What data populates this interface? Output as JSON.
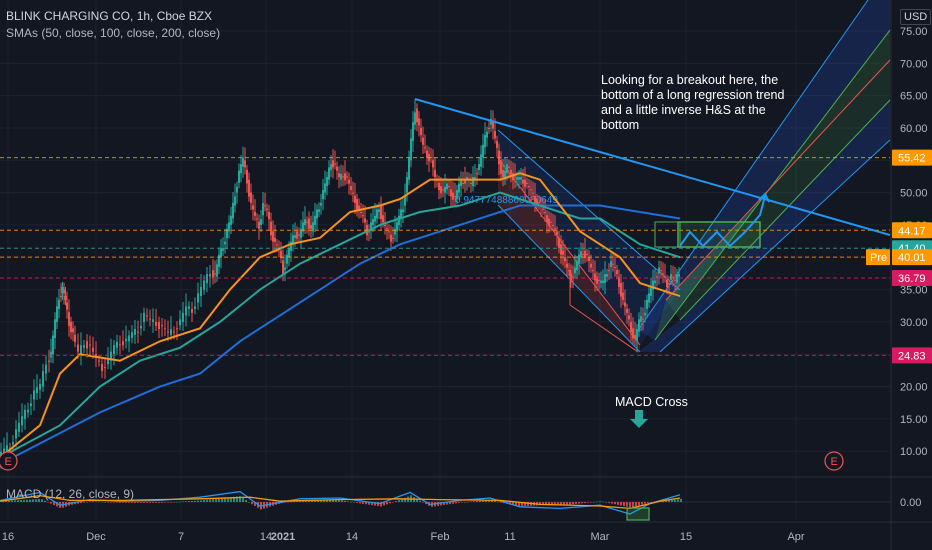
{
  "header": {
    "title": "BLINK CHARGING CO, 1h, Cboe BZX",
    "indicator": "SMAs (50, close, 100, close, 200, close)"
  },
  "currency_label": "USD",
  "annotation": "Looking for a breakout here, the bottom of a long regression trend and a little inverse H&S at the bottom",
  "macd_cross_label": "MACD Cross",
  "macd_label": "MACD (12, 26, close, 9)",
  "regression_value": "0.94777488860060649",
  "earnings_marker": "E",
  "colors": {
    "background": "#131722",
    "up_candle": "#26a69a",
    "down_candle": "#ef5350",
    "sma50": "#f7931a",
    "sma100": "#26a69a",
    "sma200": "#1e6fd9",
    "trendline": "#2196f3",
    "orange_dash": "#ff9800",
    "pink_dash": "#d81b60",
    "green_box": "#4caf50"
  },
  "chart_data": {
    "type": "candlestick",
    "symbol": "BLINK CHARGING CO",
    "interval": "1h",
    "y_axis": {
      "range": [
        5,
        78
      ],
      "ticks": [
        10,
        15,
        20,
        25,
        30,
        35,
        40,
        45,
        50,
        55,
        60,
        65,
        70,
        75
      ]
    },
    "x_axis": {
      "ticks": [
        "16",
        "Dec",
        "7",
        "14",
        "2021",
        "14",
        "Feb",
        "11",
        "Mar",
        "15",
        "Apr"
      ]
    },
    "price_labels": [
      {
        "value": 55.42,
        "text": "55.42",
        "color": "#ff9800"
      },
      {
        "value": 44.17,
        "text": "44.17",
        "color": "#ff9800"
      },
      {
        "value": 41.4,
        "text": "41.40",
        "color": "#26a69a"
      },
      {
        "value": 40.01,
        "text": "40.01",
        "color": "#ff9800",
        "tag": "Pre"
      },
      {
        "value": 36.79,
        "text": "36.79",
        "color": "#d81b60"
      },
      {
        "value": 24.83,
        "text": "24.83",
        "color": "#d81b60"
      }
    ],
    "price_path": [
      [
        0,
        9
      ],
      [
        6,
        10
      ],
      [
        12,
        11
      ],
      [
        18,
        13
      ],
      [
        24,
        15
      ],
      [
        30,
        17
      ],
      [
        36,
        19
      ],
      [
        42,
        20
      ],
      [
        48,
        24
      ],
      [
        52,
        25
      ],
      [
        56,
        30
      ],
      [
        60,
        34
      ],
      [
        63,
        35
      ],
      [
        66,
        33
      ],
      [
        70,
        30
      ],
      [
        74,
        28
      ],
      [
        80,
        25
      ],
      [
        86,
        27
      ],
      [
        92,
        26
      ],
      [
        98,
        24
      ],
      [
        104,
        23
      ],
      [
        110,
        24
      ],
      [
        116,
        26
      ],
      [
        122,
        27
      ],
      [
        128,
        27
      ],
      [
        134,
        28
      ],
      [
        140,
        29
      ],
      [
        146,
        31
      ],
      [
        152,
        30
      ],
      [
        158,
        30
      ],
      [
        164,
        29
      ],
      [
        170,
        28
      ],
      [
        176,
        29
      ],
      [
        182,
        30
      ],
      [
        188,
        32
      ],
      [
        194,
        32
      ],
      [
        200,
        34
      ],
      [
        206,
        36
      ],
      [
        212,
        38
      ],
      [
        216,
        37
      ],
      [
        220,
        40
      ],
      [
        224,
        42
      ],
      [
        228,
        44
      ],
      [
        232,
        46
      ],
      [
        236,
        50
      ],
      [
        240,
        53
      ],
      [
        244,
        55
      ],
      [
        248,
        52
      ],
      [
        252,
        48
      ],
      [
        256,
        46
      ],
      [
        260,
        45
      ],
      [
        264,
        48
      ],
      [
        268,
        47
      ],
      [
        272,
        44
      ],
      [
        276,
        42
      ],
      [
        280,
        41
      ],
      [
        284,
        38
      ],
      [
        288,
        40
      ],
      [
        292,
        42
      ],
      [
        296,
        44
      ],
      [
        300,
        43
      ],
      [
        304,
        45
      ],
      [
        308,
        46
      ],
      [
        312,
        44
      ],
      [
        316,
        46
      ],
      [
        320,
        48
      ],
      [
        324,
        50
      ],
      [
        328,
        52
      ],
      [
        332,
        55
      ],
      [
        336,
        54
      ],
      [
        340,
        52
      ],
      [
        344,
        53
      ],
      [
        348,
        52
      ],
      [
        352,
        50
      ],
      [
        356,
        49
      ],
      [
        360,
        47
      ],
      [
        364,
        46
      ],
      [
        368,
        44
      ],
      [
        372,
        45
      ],
      [
        376,
        46
      ],
      [
        380,
        48
      ],
      [
        384,
        45
      ],
      [
        388,
        44
      ],
      [
        392,
        43
      ],
      [
        396,
        44
      ],
      [
        400,
        46
      ],
      [
        404,
        48
      ],
      [
        408,
        52
      ],
      [
        412,
        58
      ],
      [
        416,
        63
      ],
      [
        420,
        60
      ],
      [
        424,
        57
      ],
      [
        428,
        56
      ],
      [
        432,
        55
      ],
      [
        436,
        52
      ],
      [
        440,
        51
      ],
      [
        444,
        50
      ],
      [
        448,
        51
      ],
      [
        452,
        50
      ],
      [
        456,
        49
      ],
      [
        460,
        51
      ],
      [
        464,
        52
      ],
      [
        468,
        52
      ],
      [
        472,
        51
      ],
      [
        476,
        53
      ],
      [
        480,
        54
      ],
      [
        484,
        57
      ],
      [
        488,
        60
      ],
      [
        492,
        61
      ],
      [
        496,
        58
      ],
      [
        500,
        55
      ],
      [
        504,
        52
      ],
      [
        508,
        54
      ],
      [
        512,
        53
      ],
      [
        516,
        52
      ],
      [
        520,
        52
      ],
      [
        524,
        52
      ],
      [
        528,
        51
      ],
      [
        532,
        50
      ],
      [
        536,
        49
      ],
      [
        540,
        48
      ],
      [
        544,
        47
      ],
      [
        548,
        46
      ],
      [
        552,
        45
      ],
      [
        556,
        44
      ],
      [
        560,
        42
      ],
      [
        564,
        40
      ],
      [
        568,
        38
      ],
      [
        572,
        37
      ],
      [
        576,
        38
      ],
      [
        580,
        40
      ],
      [
        584,
        41
      ],
      [
        588,
        40
      ],
      [
        592,
        38
      ],
      [
        596,
        37
      ],
      [
        600,
        36
      ],
      [
        604,
        36
      ],
      [
        608,
        38
      ],
      [
        612,
        39
      ],
      [
        616,
        38
      ],
      [
        620,
        36
      ],
      [
        624,
        33
      ],
      [
        628,
        31
      ],
      [
        632,
        29
      ],
      [
        636,
        27
      ],
      [
        640,
        30
      ],
      [
        644,
        31
      ],
      [
        648,
        33
      ],
      [
        652,
        35
      ],
      [
        656,
        37
      ],
      [
        660,
        38
      ],
      [
        664,
        37
      ],
      [
        668,
        36
      ],
      [
        672,
        37
      ],
      [
        676,
        36
      ],
      [
        680,
        38
      ]
    ],
    "sma50": [
      [
        0,
        9
      ],
      [
        40,
        14
      ],
      [
        60,
        22
      ],
      [
        80,
        25
      ],
      [
        120,
        24
      ],
      [
        160,
        27
      ],
      [
        200,
        29
      ],
      [
        230,
        35
      ],
      [
        260,
        40
      ],
      [
        290,
        42
      ],
      [
        320,
        43
      ],
      [
        350,
        47
      ],
      [
        380,
        48
      ],
      [
        400,
        49
      ],
      [
        430,
        52
      ],
      [
        470,
        52
      ],
      [
        500,
        52
      ],
      [
        520,
        53
      ],
      [
        540,
        52
      ],
      [
        560,
        48
      ],
      [
        580,
        44
      ],
      [
        600,
        42
      ],
      [
        620,
        40
      ],
      [
        640,
        36
      ],
      [
        660,
        35
      ],
      [
        680,
        34
      ]
    ],
    "sma100": [
      [
        0,
        9
      ],
      [
        60,
        14
      ],
      [
        100,
        20
      ],
      [
        140,
        24
      ],
      [
        180,
        26
      ],
      [
        220,
        30
      ],
      [
        260,
        35
      ],
      [
        300,
        39
      ],
      [
        340,
        42
      ],
      [
        380,
        45
      ],
      [
        420,
        47
      ],
      [
        460,
        48
      ],
      [
        500,
        50
      ],
      [
        540,
        48
      ],
      [
        580,
        46
      ],
      [
        600,
        46
      ],
      [
        620,
        44
      ],
      [
        640,
        42
      ],
      [
        660,
        41
      ],
      [
        680,
        40
      ]
    ],
    "sma200": [
      [
        0,
        8
      ],
      [
        100,
        16
      ],
      [
        160,
        20
      ],
      [
        200,
        22
      ],
      [
        240,
        27
      ],
      [
        280,
        31
      ],
      [
        320,
        35
      ],
      [
        360,
        39
      ],
      [
        400,
        42
      ],
      [
        440,
        44
      ],
      [
        480,
        46
      ],
      [
        520,
        48
      ],
      [
        560,
        48
      ],
      [
        600,
        48
      ],
      [
        640,
        47
      ],
      [
        680,
        46
      ]
    ],
    "macd": [
      [
        0,
        0.2
      ],
      [
        40,
        1.2
      ],
      [
        60,
        -0.4
      ],
      [
        90,
        0.3
      ],
      [
        120,
        0.1
      ],
      [
        160,
        0.2
      ],
      [
        200,
        0.6
      ],
      [
        240,
        1.3
      ],
      [
        260,
        -0.5
      ],
      [
        300,
        0.4
      ],
      [
        340,
        0.5
      ],
      [
        380,
        -0.2
      ],
      [
        410,
        1.2
      ],
      [
        430,
        -0.3
      ],
      [
        460,
        0.2
      ],
      [
        490,
        0.5
      ],
      [
        520,
        -0.6
      ],
      [
        560,
        -0.8
      ],
      [
        600,
        -0.4
      ],
      [
        630,
        -1.5
      ],
      [
        650,
        -0.2
      ],
      [
        680,
        0.9
      ]
    ],
    "signal": [
      [
        0,
        0.1
      ],
      [
        40,
        0.8
      ],
      [
        70,
        0.2
      ],
      [
        120,
        0.2
      ],
      [
        200,
        0.4
      ],
      [
        250,
        0.6
      ],
      [
        280,
        0.1
      ],
      [
        340,
        0.3
      ],
      [
        400,
        0.4
      ],
      [
        440,
        0.3
      ],
      [
        500,
        0.2
      ],
      [
        540,
        -0.3
      ],
      [
        600,
        -0.5
      ],
      [
        630,
        -0.8
      ],
      [
        660,
        0.1
      ],
      [
        680,
        0.5
      ]
    ],
    "macd_axis": {
      "ticks": [
        0.0
      ],
      "tick_labels": [
        "0.00"
      ]
    },
    "annotations": [
      "Looking for a breakout here, the bottom of a long regression trend and a little inverse H&S at the bottom",
      "MACD Cross"
    ]
  }
}
